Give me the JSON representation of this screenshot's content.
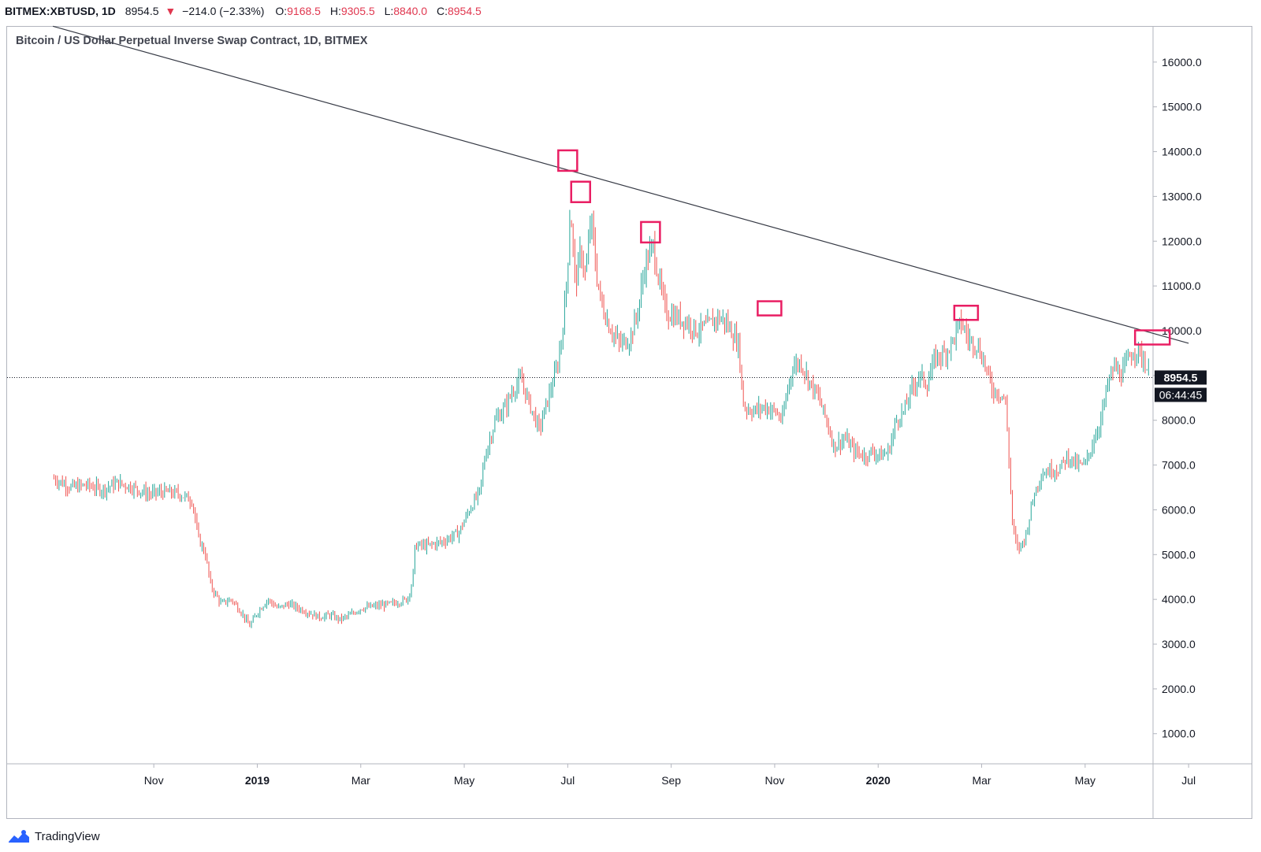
{
  "header": {
    "symbol": "BITMEX:XBTUSD, 1D",
    "last": "8954.5",
    "change_arrow": "▼",
    "change": "−214.0 (−2.33%)",
    "o_label": "O:",
    "o_value": "9168.5",
    "h_label": "H:",
    "h_value": "9305.5",
    "l_label": "L:",
    "l_value": "8840.0",
    "c_label": "C:",
    "c_value": "8954.5"
  },
  "chart_title": "Bitcoin / US Dollar Perpetual Inverse Swap Contract, 1D, BITMEX",
  "price_tag": "8954.5",
  "countdown_tag": "06:44:45",
  "footer": {
    "brand": "TradingView"
  },
  "colors": {
    "up": "#26a69a",
    "down": "#ef5350",
    "highlight": "#e91e63",
    "trendline": "#363a45"
  },
  "chart_data": {
    "type": "candlestick",
    "title": "Bitcoin / US Dollar Perpetual Inverse Swap Contract, 1D, BITMEX",
    "ylim": [
      0,
      16800
    ],
    "y_ticks": [
      "16000.0",
      "15000.0",
      "14000.0",
      "13000.0",
      "12000.0",
      "11000.0",
      "10000.0",
      "9000.0",
      "8000.0",
      "7000.0",
      "6000.0",
      "5000.0",
      "4000.0",
      "3000.0",
      "2000.0",
      "1000.0"
    ],
    "x_labels": [
      "Nov",
      "2019",
      "Mar",
      "May",
      "Jul",
      "Sep",
      "Nov",
      "2020",
      "Mar",
      "May",
      "Jul"
    ],
    "x_label_months": [
      1,
      3,
      5,
      7,
      9,
      11,
      13,
      15,
      17,
      19,
      21
    ],
    "current_price": 8954.5,
    "trendline": [
      {
        "month": -0.95,
        "price": 16800
      },
      {
        "month": 21.0,
        "price": 9720
      }
    ],
    "price_path": [
      [
        -0.93,
        6700
      ],
      [
        -0.6,
        6500
      ],
      [
        -0.3,
        6550
      ],
      [
        0.0,
        6450
      ],
      [
        0.3,
        6600
      ],
      [
        0.6,
        6500
      ],
      [
        0.9,
        6350
      ],
      [
        1.2,
        6400
      ],
      [
        1.5,
        6350
      ],
      [
        1.75,
        6200
      ],
      [
        1.85,
        5400
      ],
      [
        2.0,
        5000
      ],
      [
        2.1,
        4300
      ],
      [
        2.3,
        3900
      ],
      [
        2.5,
        4000
      ],
      [
        2.7,
        3700
      ],
      [
        2.85,
        3400
      ],
      [
        3.0,
        3700
      ],
      [
        3.2,
        4000
      ],
      [
        3.4,
        3800
      ],
      [
        3.6,
        3900
      ],
      [
        3.8,
        3800
      ],
      [
        4.0,
        3700
      ],
      [
        4.2,
        3600
      ],
      [
        4.4,
        3650
      ],
      [
        4.6,
        3550
      ],
      [
        4.8,
        3650
      ],
      [
        5.0,
        3800
      ],
      [
        5.3,
        3850
      ],
      [
        5.6,
        3900
      ],
      [
        5.9,
        4000
      ],
      [
        6.0,
        4400
      ],
      [
        6.05,
        5200
      ],
      [
        6.3,
        5200
      ],
      [
        6.6,
        5300
      ],
      [
        6.9,
        5500
      ],
      [
        7.1,
        6000
      ],
      [
        7.3,
        6400
      ],
      [
        7.4,
        7200
      ],
      [
        7.6,
        8000
      ],
      [
        7.8,
        8300
      ],
      [
        7.95,
        8700
      ],
      [
        8.1,
        8900
      ],
      [
        8.25,
        8400
      ],
      [
        8.45,
        7800
      ],
      [
        8.6,
        8400
      ],
      [
        8.8,
        9200
      ],
      [
        8.92,
        10200
      ],
      [
        9.0,
        11500
      ],
      [
        9.05,
        12800
      ],
      [
        9.15,
        11000
      ],
      [
        9.25,
        11800
      ],
      [
        9.35,
        11200
      ],
      [
        9.45,
        12600
      ],
      [
        9.55,
        11300
      ],
      [
        9.65,
        10600
      ],
      [
        9.8,
        10100
      ],
      [
        10.0,
        9700
      ],
      [
        10.2,
        9800
      ],
      [
        10.35,
        10400
      ],
      [
        10.5,
        11500
      ],
      [
        10.65,
        11900
      ],
      [
        10.75,
        11200
      ],
      [
        10.9,
        10400
      ],
      [
        11.1,
        10300
      ],
      [
        11.3,
        10200
      ],
      [
        11.5,
        10000
      ],
      [
        11.7,
        10100
      ],
      [
        11.9,
        10300
      ],
      [
        12.05,
        10200
      ],
      [
        12.3,
        9700
      ],
      [
        12.4,
        8300
      ],
      [
        12.6,
        8200
      ],
      [
        12.8,
        8300
      ],
      [
        13.0,
        8200
      ],
      [
        13.15,
        8000
      ],
      [
        13.25,
        8700
      ],
      [
        13.35,
        9200
      ],
      [
        13.5,
        9300
      ],
      [
        13.7,
        8800
      ],
      [
        13.85,
        8500
      ],
      [
        14.0,
        8000
      ],
      [
        14.15,
        7400
      ],
      [
        14.35,
        7600
      ],
      [
        14.55,
        7300
      ],
      [
        14.75,
        7200
      ],
      [
        14.9,
        7300
      ],
      [
        15.05,
        7200
      ],
      [
        15.2,
        7300
      ],
      [
        15.35,
        8000
      ],
      [
        15.5,
        8200
      ],
      [
        15.65,
        8700
      ],
      [
        15.8,
        9000
      ],
      [
        15.95,
        8800
      ],
      [
        16.1,
        9400
      ],
      [
        16.3,
        9500
      ],
      [
        16.45,
        9800
      ],
      [
        16.6,
        10200
      ],
      [
        16.75,
        9800
      ],
      [
        16.9,
        9700
      ],
      [
        17.05,
        9300
      ],
      [
        17.2,
        8700
      ],
      [
        17.35,
        8600
      ],
      [
        17.45,
        8500
      ],
      [
        17.5,
        7700
      ],
      [
        17.6,
        5600
      ],
      [
        17.7,
        5100
      ],
      [
        17.85,
        5400
      ],
      [
        18.0,
        6300
      ],
      [
        18.15,
        6800
      ],
      [
        18.35,
        6900
      ],
      [
        18.5,
        6900
      ],
      [
        18.65,
        7200
      ],
      [
        18.85,
        7000
      ],
      [
        19.0,
        7000
      ],
      [
        19.15,
        7500
      ],
      [
        19.3,
        8000
      ],
      [
        19.42,
        8700
      ],
      [
        19.55,
        9200
      ],
      [
        19.7,
        9000
      ],
      [
        19.85,
        9400
      ],
      [
        20.0,
        9600
      ],
      [
        20.15,
        9300
      ],
      [
        20.25,
        8954.5
      ]
    ],
    "annotations": [
      {
        "label": "peak",
        "month": 9.0,
        "price": 13800
      },
      {
        "label": "peak",
        "month": 9.25,
        "price": 13100
      },
      {
        "label": "peak",
        "month": 10.6,
        "price": 12200
      },
      {
        "label": "peak",
        "month": 12.9,
        "price": 10500
      },
      {
        "label": "peak",
        "month": 16.7,
        "price": 10400
      },
      {
        "label": "peak",
        "month": 20.3,
        "price": 9850
      }
    ]
  }
}
